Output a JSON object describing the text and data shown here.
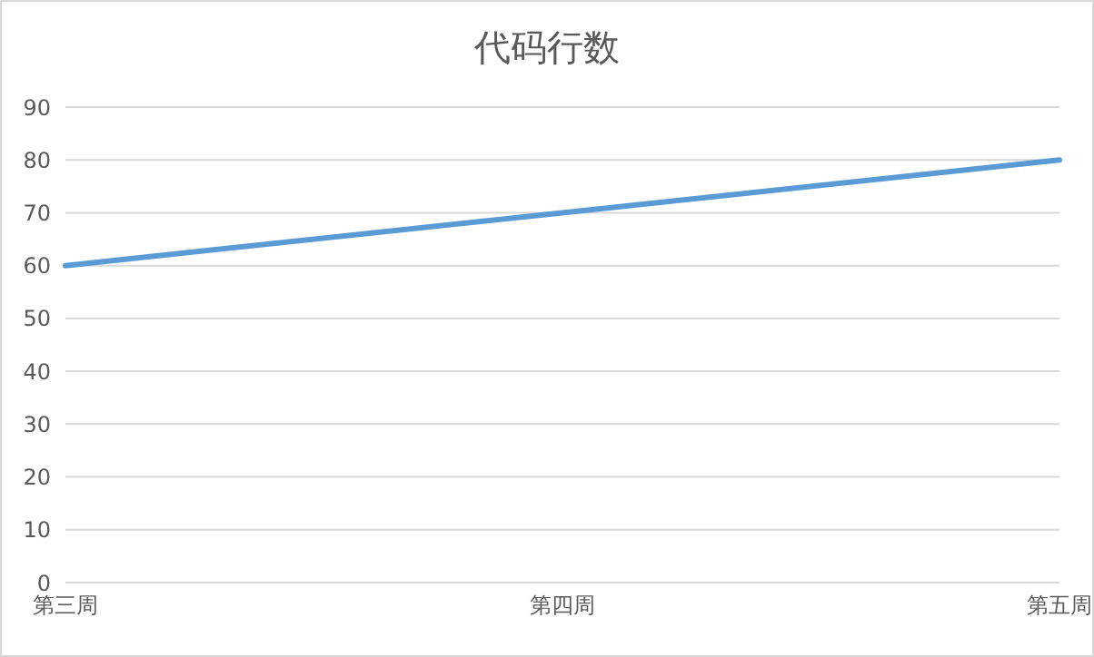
{
  "chart_data": {
    "type": "line",
    "title": "代码行数",
    "categories": [
      "第三周",
      "第四周",
      "第五周"
    ],
    "series": [
      {
        "color": "#5b9bd5",
        "values": [
          60,
          70,
          80
        ]
      }
    ],
    "ylim": [
      0,
      90
    ],
    "yticks": [
      0,
      10,
      20,
      30,
      40,
      50,
      60,
      70,
      80,
      90
    ],
    "grid": "y",
    "legend": false,
    "marker": "none",
    "line_style": "solid"
  }
}
